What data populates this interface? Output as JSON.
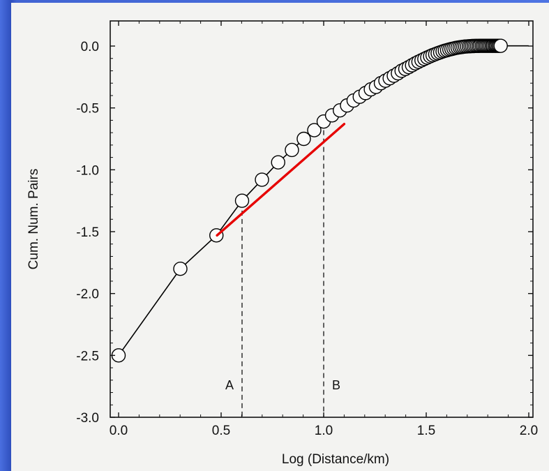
{
  "chart_data": {
    "type": "line",
    "title": "",
    "xlabel": "Log (Distance/km)",
    "ylabel": "Cum. Num. Pairs",
    "xlim": [
      0.0,
      2.0
    ],
    "ylim": [
      -3.0,
      0.0
    ],
    "x_ticks": [
      "0.0",
      "0.5",
      "1.0",
      "1.5",
      "2.0"
    ],
    "x_tick_values": [
      0.0,
      0.5,
      1.0,
      1.5,
      2.0
    ],
    "y_ticks": [
      "0.0",
      "-0.5",
      "-1.0",
      "-1.5",
      "-2.0",
      "-2.5",
      "-3.0"
    ],
    "y_tick_values": [
      0.0,
      -0.5,
      -1.0,
      -1.5,
      -2.0,
      -2.5,
      -3.0
    ],
    "series": [
      {
        "x": [
          0.0,
          0.301,
          0.477,
          0.602,
          0.699,
          0.778,
          0.845,
          0.903,
          0.954,
          1.0,
          1.041,
          1.079,
          1.114,
          1.146,
          1.176,
          1.204,
          1.23,
          1.255,
          1.279,
          1.301,
          1.322,
          1.342,
          1.362,
          1.38,
          1.398,
          1.415,
          1.431,
          1.447,
          1.462,
          1.477,
          1.491,
          1.505,
          1.519,
          1.531,
          1.544,
          1.556,
          1.568,
          1.58,
          1.591,
          1.602,
          1.613,
          1.623,
          1.633,
          1.643,
          1.653,
          1.663,
          1.672,
          1.681,
          1.69,
          1.699,
          1.708,
          1.716,
          1.724,
          1.732,
          1.74,
          1.748,
          1.756,
          1.763,
          1.771,
          1.778,
          1.785,
          1.792,
          1.799,
          1.806,
          1.813,
          1.82,
          1.826,
          1.833,
          1.839,
          1.845,
          1.851,
          1.857,
          1.863
        ],
        "y": [
          -2.5,
          -1.8,
          -1.53,
          -1.25,
          -1.08,
          -0.94,
          -0.84,
          -0.75,
          -0.68,
          -0.61,
          -0.56,
          -0.52,
          -0.48,
          -0.44,
          -0.41,
          -0.38,
          -0.35,
          -0.33,
          -0.3,
          -0.28,
          -0.26,
          -0.24,
          -0.22,
          -0.2,
          -0.185,
          -0.17,
          -0.155,
          -0.14,
          -0.127,
          -0.115,
          -0.104,
          -0.093,
          -0.083,
          -0.074,
          -0.066,
          -0.058,
          -0.051,
          -0.044,
          -0.038,
          -0.033,
          -0.028,
          -0.024,
          -0.02,
          -0.016,
          -0.013,
          -0.01,
          -0.008,
          -0.006,
          -0.004,
          -0.003,
          -0.002,
          -0.001,
          0.0,
          0.0,
          0.001,
          0.001,
          0.001,
          0.002,
          0.002,
          0.002,
          0.002,
          0.002,
          0.002,
          0.002,
          0.002,
          0.002,
          0.002,
          0.002,
          0.002,
          0.002,
          0.002,
          0.002,
          0.002
        ],
        "marker": "open-circle",
        "color": "#000000"
      }
    ],
    "fit_line": {
      "x": [
        0.48,
        1.1
      ],
      "y": [
        -1.53,
        -0.63
      ],
      "color": "#e60000"
    },
    "reference_lines": [
      {
        "x": 0.602,
        "label": "A",
        "y_top": -1.33
      },
      {
        "x": 1.0,
        "label": "B",
        "y_top": -0.68
      }
    ],
    "grid": false,
    "legend": "none"
  }
}
